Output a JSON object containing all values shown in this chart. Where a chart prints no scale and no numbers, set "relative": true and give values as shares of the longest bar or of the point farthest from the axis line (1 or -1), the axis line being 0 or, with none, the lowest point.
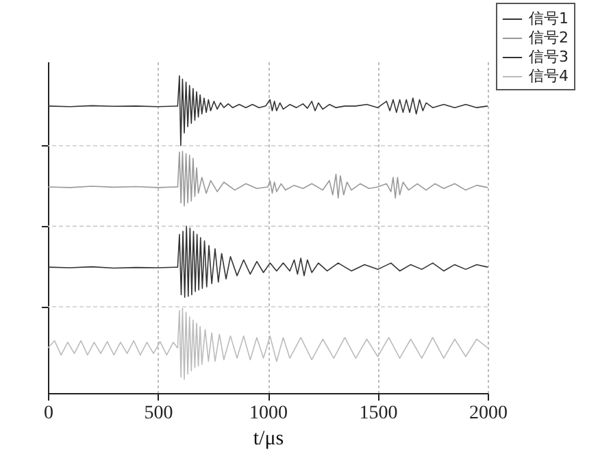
{
  "chart_data": {
    "type": "line",
    "xlabel": "t/μs",
    "relative": true,
    "xlim": [
      0,
      2000
    ],
    "xticks": [
      0,
      500,
      1000,
      1500,
      2000
    ],
    "grid": "x",
    "legend": "top right",
    "tick_labels": "x",
    "line_style": "solid",
    "marker": "none",
    "ref_lines": [
      {
        "axis": "y",
        "value": 0.78,
        "color": "#cccccc"
      },
      {
        "axis": "y",
        "value": 0.526,
        "color": "#cccccc"
      },
      {
        "axis": "y",
        "value": 0.272,
        "color": "#cccccc"
      }
    ],
    "series": [
      {
        "name": "信号1",
        "color": "#333333",
        "x": [
          0,
          100,
          200,
          300,
          400,
          500,
          590,
          598,
          604,
          612,
          620,
          628,
          636,
          644,
          652,
          660,
          668,
          676,
          684,
          692,
          700,
          710,
          720,
          730,
          740,
          755,
          770,
          785,
          800,
          820,
          840,
          870,
          900,
          930,
          960,
          990,
          1010,
          1020,
          1030,
          1040,
          1055,
          1070,
          1100,
          1130,
          1160,
          1180,
          1200,
          1215,
          1230,
          1250,
          1280,
          1310,
          1350,
          1400,
          1450,
          1500,
          1540,
          1555,
          1570,
          1585,
          1600,
          1615,
          1630,
          1645,
          1660,
          1675,
          1690,
          1705,
          1720,
          1750,
          1800,
          1850,
          1900,
          1950,
          2000
        ],
        "values": [
          0.905,
          0.903,
          0.906,
          0.904,
          0.905,
          0.903,
          0.905,
          1.0,
          0.78,
          0.99,
          0.82,
          0.98,
          0.84,
          0.97,
          0.85,
          0.96,
          0.86,
          0.95,
          0.87,
          0.94,
          0.88,
          0.93,
          0.885,
          0.925,
          0.89,
          0.92,
          0.895,
          0.915,
          0.9,
          0.912,
          0.9,
          0.91,
          0.9,
          0.91,
          0.9,
          0.905,
          0.925,
          0.89,
          0.92,
          0.89,
          0.915,
          0.895,
          0.91,
          0.9,
          0.912,
          0.898,
          0.92,
          0.89,
          0.915,
          0.895,
          0.91,
          0.9,
          0.905,
          0.905,
          0.91,
          0.9,
          0.92,
          0.89,
          0.925,
          0.885,
          0.925,
          0.885,
          0.925,
          0.885,
          0.93,
          0.88,
          0.925,
          0.89,
          0.915,
          0.9,
          0.91,
          0.9,
          0.91,
          0.9,
          0.905
        ]
      },
      {
        "name": "信号2",
        "color": "#999999",
        "x": [
          0,
          100,
          200,
          300,
          400,
          500,
          590,
          598,
          605,
          612,
          620,
          628,
          636,
          644,
          652,
          660,
          668,
          676,
          684,
          700,
          720,
          740,
          770,
          800,
          850,
          900,
          950,
          1000,
          1010,
          1020,
          1030,
          1040,
          1060,
          1080,
          1120,
          1160,
          1200,
          1250,
          1280,
          1295,
          1310,
          1320,
          1330,
          1345,
          1360,
          1380,
          1420,
          1460,
          1500,
          1540,
          1560,
          1570,
          1580,
          1590,
          1600,
          1615,
          1640,
          1680,
          1720,
          1760,
          1800,
          1850,
          1900,
          1950,
          2000
        ],
        "values": [
          0.65,
          0.648,
          0.652,
          0.649,
          0.651,
          0.648,
          0.65,
          0.76,
          0.6,
          0.762,
          0.59,
          0.755,
          0.6,
          0.75,
          0.605,
          0.74,
          0.62,
          0.71,
          0.63,
          0.68,
          0.63,
          0.67,
          0.635,
          0.665,
          0.64,
          0.66,
          0.645,
          0.65,
          0.67,
          0.63,
          0.665,
          0.635,
          0.66,
          0.64,
          0.655,
          0.645,
          0.66,
          0.64,
          0.67,
          0.625,
          0.69,
          0.615,
          0.685,
          0.625,
          0.665,
          0.64,
          0.66,
          0.645,
          0.65,
          0.66,
          0.635,
          0.68,
          0.615,
          0.68,
          0.625,
          0.665,
          0.64,
          0.66,
          0.64,
          0.66,
          0.645,
          0.66,
          0.64,
          0.655,
          0.648
        ]
      },
      {
        "name": "信号3",
        "color": "#333333",
        "x": [
          0,
          100,
          200,
          300,
          400,
          500,
          590,
          598,
          606,
          614,
          622,
          630,
          638,
          646,
          654,
          662,
          670,
          678,
          686,
          694,
          702,
          712,
          722,
          732,
          745,
          760,
          775,
          790,
          810,
          830,
          860,
          890,
          920,
          950,
          980,
          1010,
          1040,
          1070,
          1100,
          1120,
          1135,
          1150,
          1165,
          1180,
          1200,
          1230,
          1270,
          1320,
          1380,
          1440,
          1500,
          1560,
          1600,
          1650,
          1700,
          1750,
          1800,
          1850,
          1900,
          1950,
          2000
        ],
        "values": [
          0.397,
          0.395,
          0.398,
          0.394,
          0.396,
          0.395,
          0.397,
          0.5,
          0.31,
          0.51,
          0.302,
          0.526,
          0.305,
          0.52,
          0.31,
          0.51,
          0.32,
          0.5,
          0.325,
          0.49,
          0.33,
          0.48,
          0.335,
          0.465,
          0.345,
          0.455,
          0.35,
          0.44,
          0.36,
          0.43,
          0.37,
          0.42,
          0.375,
          0.415,
          0.38,
          0.41,
          0.385,
          0.41,
          0.385,
          0.42,
          0.375,
          0.425,
          0.37,
          0.42,
          0.38,
          0.41,
          0.385,
          0.41,
          0.385,
          0.405,
          0.39,
          0.41,
          0.385,
          0.405,
          0.39,
          0.41,
          0.385,
          0.405,
          0.39,
          0.405,
          0.397
        ]
      },
      {
        "name": "信号4",
        "color": "#bbbbbb",
        "x": [
          0,
          30,
          60,
          90,
          120,
          150,
          180,
          210,
          240,
          270,
          300,
          330,
          360,
          390,
          420,
          450,
          480,
          510,
          540,
          570,
          590,
          598,
          605,
          612,
          620,
          628,
          636,
          644,
          652,
          660,
          668,
          676,
          684,
          692,
          700,
          715,
          730,
          745,
          760,
          780,
          800,
          830,
          860,
          890,
          920,
          950,
          980,
          1010,
          1040,
          1070,
          1100,
          1150,
          1200,
          1250,
          1300,
          1350,
          1400,
          1450,
          1500,
          1550,
          1600,
          1650,
          1700,
          1750,
          1800,
          1850,
          1900,
          1950,
          2000
        ],
        "values": [
          0.142,
          0.165,
          0.12,
          0.16,
          0.125,
          0.165,
          0.12,
          0.16,
          0.125,
          0.162,
          0.12,
          0.16,
          0.125,
          0.165,
          0.12,
          0.16,
          0.125,
          0.162,
          0.12,
          0.16,
          0.142,
          0.26,
          0.05,
          0.267,
          0.043,
          0.255,
          0.06,
          0.24,
          0.07,
          0.23,
          0.08,
          0.22,
          0.085,
          0.21,
          0.09,
          0.2,
          0.1,
          0.19,
          0.1,
          0.185,
          0.105,
          0.18,
          0.11,
          0.18,
          0.105,
          0.175,
          0.11,
          0.18,
          0.1,
          0.175,
          0.11,
          0.175,
          0.105,
          0.17,
          0.11,
          0.175,
          0.11,
          0.17,
          0.115,
          0.175,
          0.11,
          0.17,
          0.11,
          0.175,
          0.11,
          0.17,
          0.115,
          0.17,
          0.142
        ]
      }
    ]
  }
}
